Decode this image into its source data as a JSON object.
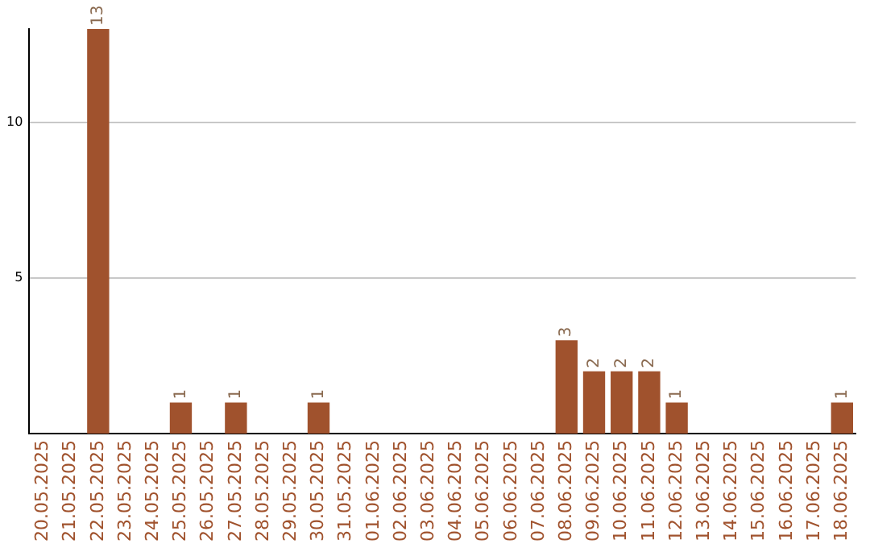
{
  "chart_data": {
    "type": "bar",
    "categories": [
      "20.05.2025",
      "21.05.2025",
      "22.05.2025",
      "23.05.2025",
      "24.05.2025",
      "25.05.2025",
      "26.05.2025",
      "27.05.2025",
      "28.05.2025",
      "29.05.2025",
      "30.05.2025",
      "31.05.2025",
      "01.06.2025",
      "02.06.2025",
      "03.06.2025",
      "04.06.2025",
      "05.06.2025",
      "06.06.2025",
      "07.06.2025",
      "08.06.2025",
      "09.06.2025",
      "10.06.2025",
      "11.06.2025",
      "12.06.2025",
      "13.06.2025",
      "14.06.2025",
      "15.06.2025",
      "16.06.2025",
      "17.06.2025",
      "18.06.2025"
    ],
    "values": [
      0,
      0,
      13,
      0,
      0,
      1,
      0,
      1,
      0,
      0,
      1,
      0,
      0,
      0,
      0,
      0,
      0,
      0,
      0,
      3,
      2,
      2,
      2,
      1,
      0,
      0,
      0,
      0,
      0,
      1
    ],
    "value_labels": [
      null,
      null,
      "13",
      null,
      null,
      "1",
      null,
      "1",
      null,
      null,
      "1",
      null,
      null,
      null,
      null,
      null,
      null,
      null,
      null,
      "3",
      "2",
      "2",
      "2",
      "1",
      null,
      null,
      null,
      null,
      null,
      "1"
    ],
    "color": "#a0522d",
    "ylim": [
      0,
      13
    ],
    "yticks": [
      5,
      10
    ],
    "grid": "y"
  }
}
